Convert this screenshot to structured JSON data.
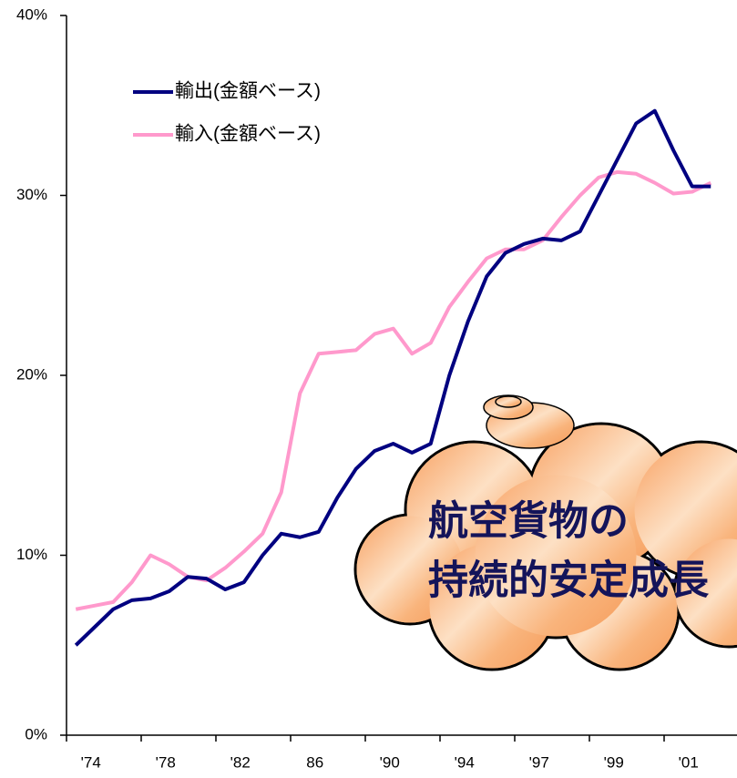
{
  "chart_data": {
    "type": "line",
    "categories": [
      null,
      "'74",
      null,
      null,
      null,
      "'78",
      null,
      null,
      null,
      "'82",
      null,
      null,
      null,
      "86",
      null,
      null,
      null,
      "'90",
      null,
      null,
      null,
      "'94",
      null,
      null,
      null,
      "'97",
      null,
      null,
      null,
      "'99",
      null,
      null,
      null,
      "'01",
      null
    ],
    "series": [
      {
        "name": "輸出(金額ベース)",
        "color": "#000080",
        "values": [
          5.0,
          6.0,
          7.0,
          7.5,
          7.6,
          8.0,
          8.8,
          8.7,
          8.1,
          8.5,
          10.0,
          11.2,
          11.0,
          11.3,
          13.2,
          14.8,
          15.8,
          16.2,
          15.7,
          16.2,
          20.0,
          23.0,
          25.5,
          26.8,
          27.3,
          27.6,
          27.5,
          28.0,
          30.0,
          32.0,
          34.0,
          34.7,
          32.5,
          30.5,
          30.5
        ]
      },
      {
        "name": "輸入(金額ベース)",
        "color": "#ff99cc",
        "values": [
          7.0,
          7.2,
          7.4,
          8.5,
          10.0,
          9.5,
          8.8,
          8.6,
          9.3,
          10.2,
          11.2,
          13.5,
          19.0,
          21.2,
          21.3,
          21.4,
          22.3,
          22.6,
          21.2,
          21.8,
          23.8,
          25.2,
          26.5,
          27.0,
          27.0,
          27.5,
          28.8,
          30.0,
          31.0,
          31.3,
          31.2,
          30.7,
          30.1,
          30.2,
          30.7
        ]
      }
    ],
    "ylim": [
      0,
      40
    ],
    "yticks": [
      {
        "value": 0,
        "label": "0%"
      },
      {
        "value": 10,
        "label": "10%"
      },
      {
        "value": 20,
        "label": "20%"
      },
      {
        "value": 30,
        "label": "30%"
      },
      {
        "value": 40,
        "label": "40%"
      }
    ],
    "legend": "top-left",
    "annotation": [
      "航空貨物の",
      "持続的安定成長"
    ]
  }
}
